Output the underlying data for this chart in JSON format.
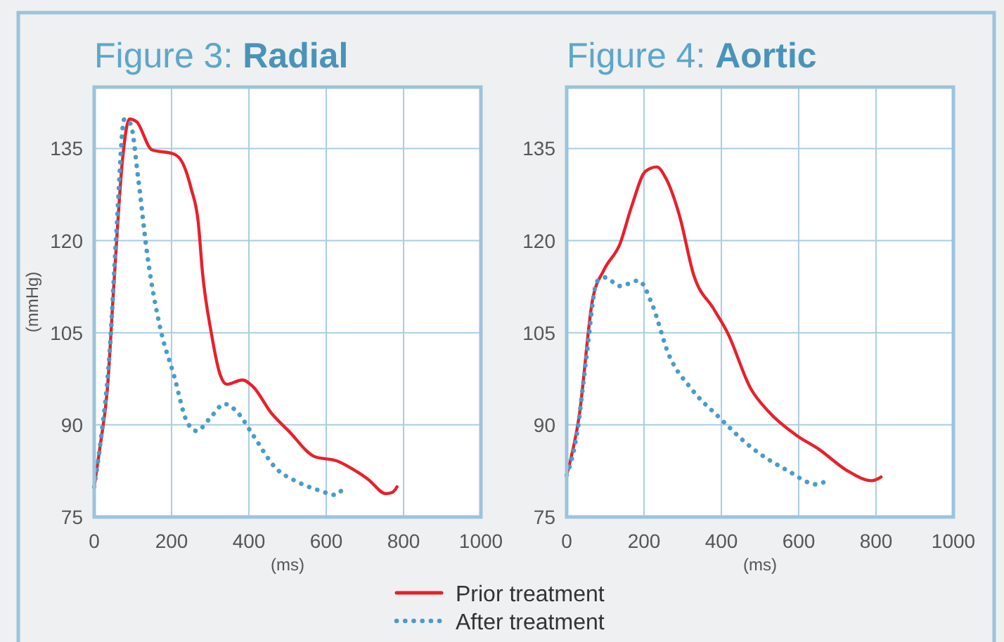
{
  "chart_data": [
    {
      "type": "line",
      "title": "Figure 3: Radial",
      "xlabel": "(ms)",
      "ylabel": "(mmHg)",
      "xlim": [
        0,
        1000
      ],
      "xticks": [
        0,
        200,
        400,
        600,
        800,
        1000
      ],
      "ylim": [
        75,
        145
      ],
      "yticks": [
        75,
        90,
        105,
        120,
        135
      ],
      "grid": true,
      "legend": "bottom",
      "series": [
        {
          "name": "Prior treatment",
          "color": "#e8202a",
          "line_style": "solid",
          "x": [
            0,
            14,
            34,
            51,
            74,
            91,
            109,
            149,
            206,
            229,
            251,
            269,
            280,
            303,
            326,
            343,
            383,
            411,
            457,
            503,
            571,
            629,
            663,
            709,
            754,
            771,
            783
          ],
          "values": [
            79.9,
            86,
            95.8,
            113,
            133.7,
            139.8,
            139.4,
            134.8,
            134.1,
            132.6,
            128.4,
            123,
            114.8,
            104.9,
            98.1,
            96.6,
            97.3,
            96.2,
            92,
            89,
            84.8,
            84.1,
            83,
            81.1,
            78.8,
            79,
            79.9
          ]
        },
        {
          "name": "After treatment",
          "color": "#4a9cc8",
          "line_style": "dotted",
          "x": [
            0,
            17,
            40,
            57,
            78,
            94,
            114,
            137,
            171,
            206,
            240,
            265,
            297,
            337,
            371,
            411,
            469,
            526,
            583,
            623,
            642
          ],
          "values": [
            79.9,
            87.5,
            101.9,
            120.8,
            139.8,
            139,
            130,
            117.8,
            105.7,
            98.1,
            90.5,
            89,
            90.9,
            93.4,
            92,
            88.3,
            83,
            80.7,
            79.3,
            78.6,
            79.5
          ]
        }
      ]
    },
    {
      "type": "line",
      "title": "Figure 4: Aortic",
      "xlabel": "(ms)",
      "xlim": [
        0,
        1000
      ],
      "xticks": [
        0,
        200,
        400,
        600,
        800,
        1000
      ],
      "ylim": [
        75,
        145
      ],
      "yticks": [
        75,
        90,
        105,
        120,
        135
      ],
      "grid": true,
      "series": [
        {
          "color": "#e8202a",
          "line_style": "solid",
          "x": [
            0,
            32,
            67,
            97,
            138,
            168,
            204,
            233,
            257,
            292,
            328,
            381,
            416,
            476,
            523,
            594,
            653,
            724,
            789,
            813
          ],
          "values": [
            81.8,
            91.3,
            110.4,
            115.3,
            119.5,
            125.6,
            131.3,
            132,
            130.1,
            124,
            114.5,
            108.8,
            105,
            95.9,
            92.1,
            88.3,
            86,
            82.6,
            80.9,
            81.5
          ]
        },
        {
          "color": "#4a9cc8",
          "line_style": "dotted",
          "x": [
            0,
            26,
            50,
            79,
            99,
            138,
            186,
            221,
            263,
            322,
            393,
            476,
            570,
            647,
            671
          ],
          "values": [
            81.8,
            88.3,
            100.5,
            113.4,
            114,
            112.6,
            113.5,
            109.6,
            101.6,
            95.9,
            91.3,
            86.4,
            82.6,
            80.3,
            80.9
          ]
        }
      ]
    }
  ]
}
